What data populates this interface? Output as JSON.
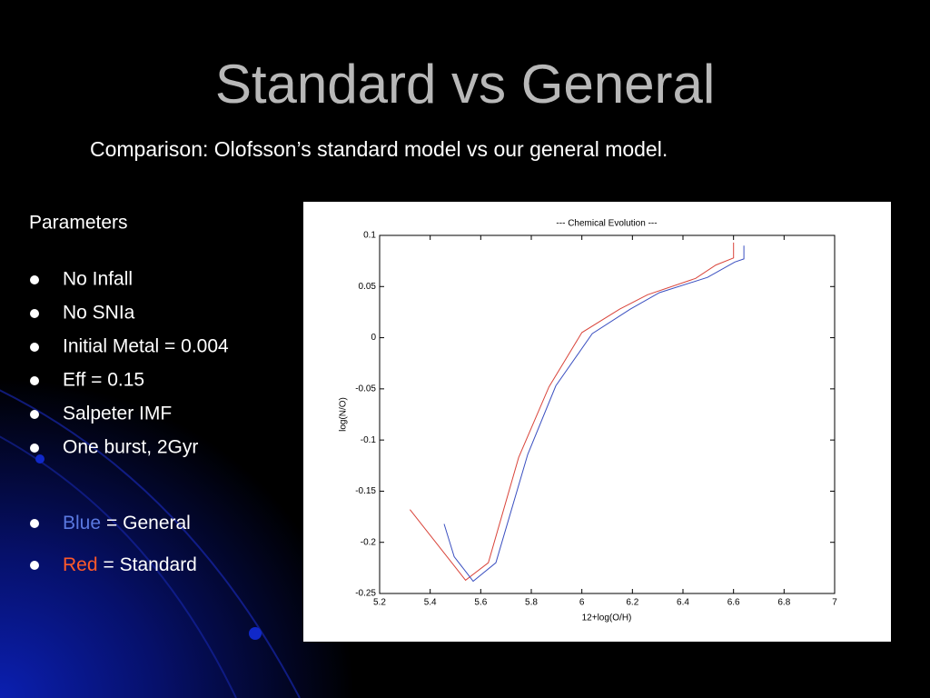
{
  "slide": {
    "title": "Standard vs General",
    "subtitle": "Comparison: Olofsson’s standard model vs our general model.",
    "section_heading": "Parameters",
    "bullets": [
      "No Infall",
      "No SNIa",
      "Initial Metal = 0.004",
      "Eff = 0.15",
      "Salpeter IMF",
      "One burst, 2Gyr"
    ],
    "key_bullets": [
      {
        "highlight": "Blue",
        "highlight_color": "#5a78e0",
        "text": "= General"
      },
      {
        "highlight": "Red",
        "highlight_color": "#ff5a2a",
        "text": "= Standard"
      }
    ]
  },
  "chart_data": {
    "type": "line",
    "title": "--- Chemical Evolution ---",
    "x_label": "12+log(O/H)",
    "y_label": "log(N/O)",
    "xlim": [
      5.2,
      7
    ],
    "xticks": [
      5.2,
      5.4,
      5.6,
      5.8,
      6,
      6.2,
      6.4,
      6.6,
      6.8,
      7
    ],
    "ylim": [
      -0.25,
      0.1
    ],
    "yticks": [
      0.1,
      0.05,
      0,
      -0.05,
      -0.1,
      -0.15,
      -0.2,
      -0.25
    ],
    "grid": false,
    "series": [
      {
        "color": "#d9443a",
        "x": [
          5.32,
          5.54,
          5.63,
          5.75,
          5.87,
          6.0,
          6.15,
          6.26,
          6.45,
          6.53,
          6.6,
          6.6
        ],
        "values": [
          -0.168,
          -0.237,
          -0.22,
          -0.117,
          -0.048,
          0.005,
          0.028,
          0.042,
          0.058,
          0.071,
          0.078,
          0.093
        ]
      },
      {
        "color": "#3a4fc0",
        "x": [
          5.455,
          5.495,
          5.57,
          5.66,
          5.786,
          5.897,
          6.041,
          6.192,
          6.307,
          6.497,
          6.605,
          6.641,
          6.641
        ],
        "values": [
          -0.182,
          -0.214,
          -0.238,
          -0.22,
          -0.114,
          -0.047,
          0.004,
          0.028,
          0.044,
          0.059,
          0.074,
          0.077,
          0.09
        ]
      }
    ]
  }
}
